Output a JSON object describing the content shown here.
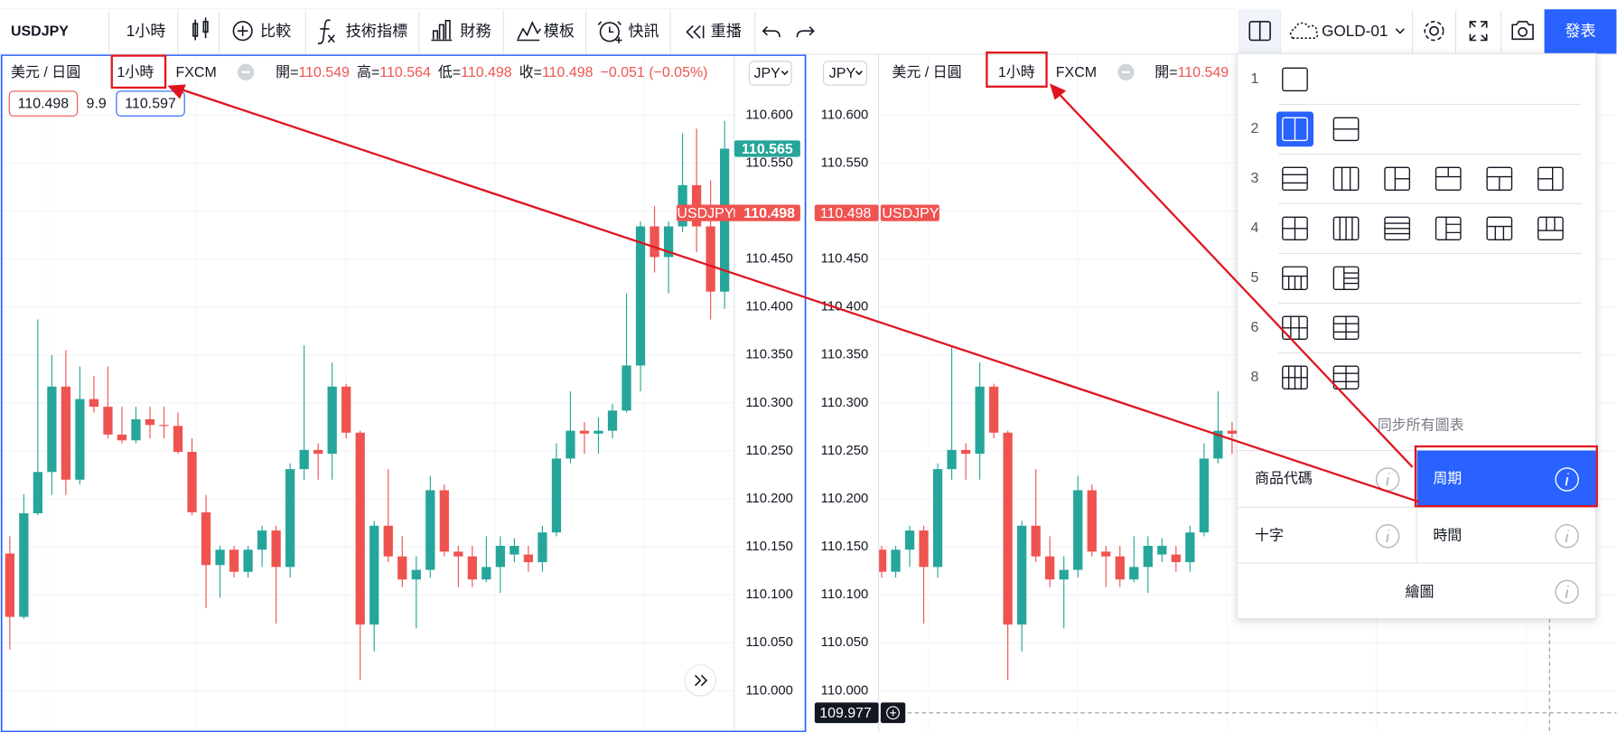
{
  "toolbar": {
    "symbol": "USDJPY",
    "interval": "1小時",
    "buttons": [
      "比較",
      "技術指標",
      "財務",
      "模板",
      "快訊",
      "重播"
    ],
    "layout_name": "GOLD-01",
    "publish": "發表"
  },
  "left_pane": {
    "quote": "美元 / 日圓",
    "interval": "1小時",
    "exchange": "FXCM",
    "ohlc": [
      {
        "label": "開=",
        "value": "110.549"
      },
      {
        "label": "高=",
        "value": "110.564"
      },
      {
        "label": "低=",
        "value": "110.498"
      },
      {
        "label": "收=",
        "value": "110.498"
      }
    ],
    "change": "−0.051 (−0.05%)",
    "bid": "110.498",
    "spread": "9.9",
    "ask": "110.597",
    "currency": "JPY",
    "last_price": 110.565,
    "symbol": "USDJPY",
    "symbol_price": 110.498
  },
  "right_pane": {
    "currency": "JPY",
    "quote": "美元 / 日圓",
    "interval": "1小時",
    "exchange": "FXCM",
    "open_label": "開=",
    "open": "110.549",
    "symbol_price": 110.498,
    "symbol": "USDJPY",
    "crosshair_price": 109.977
  },
  "layout_panel": {
    "rows": [
      "1",
      "2",
      "3",
      "4",
      "5",
      "6",
      "8"
    ],
    "sync_label": "同步所有圖表",
    "options": [
      "商品代碼",
      "周期",
      "十字",
      "時間",
      "繪圖"
    ]
  },
  "chart_data": {
    "type": "candlestick",
    "up_color": "#26a69a",
    "down_color": "#ef5350",
    "open": [
      110.143,
      110.077,
      110.185,
      110.228,
      110.317,
      110.22,
      110.304,
      110.296,
      110.267,
      110.261,
      110.283,
      110.277,
      110.276,
      110.249,
      110.186,
      110.131,
      110.147,
      110.124,
      110.147,
      110.167,
      110.129,
      110.231,
      110.251,
      110.247,
      110.317,
      110.269,
      110.069,
      110.172,
      110.14,
      110.116,
      110.126,
      110.209,
      110.145,
      110.14,
      110.116,
      110.129,
      110.142,
      110.142,
      110.134,
      110.165,
      110.242,
      110.271,
      110.268,
      110.271,
      110.292,
      110.339,
      110.484,
      110.452,
      110.484,
      110.527,
      110.484,
      110.416
    ],
    "high": [
      110.161,
      110.205,
      110.387,
      110.35,
      110.355,
      110.338,
      110.328,
      110.338,
      110.296,
      110.296,
      110.296,
      110.296,
      110.29,
      110.263,
      110.204,
      110.151,
      110.151,
      110.151,
      110.172,
      110.172,
      110.237,
      110.36,
      110.258,
      110.342,
      110.32,
      110.271,
      110.177,
      110.231,
      110.161,
      110.14,
      110.224,
      110.215,
      110.151,
      110.151,
      110.161,
      110.161,
      110.159,
      110.151,
      110.172,
      110.258,
      110.312,
      110.28,
      110.285,
      110.299,
      110.414,
      110.489,
      110.505,
      110.489,
      110.581,
      110.586,
      110.532,
      110.594
    ],
    "low": [
      110.043,
      110.075,
      110.183,
      110.204,
      110.204,
      110.215,
      110.29,
      110.263,
      110.258,
      110.258,
      110.263,
      110.263,
      110.247,
      110.183,
      110.086,
      110.097,
      110.118,
      110.118,
      110.129,
      110.07,
      110.118,
      110.22,
      110.22,
      110.22,
      110.263,
      110.011,
      110.041,
      110.134,
      110.108,
      110.065,
      110.118,
      110.14,
      110.108,
      110.108,
      110.113,
      110.102,
      110.134,
      110.124,
      110.124,
      110.161,
      110.237,
      110.247,
      110.247,
      110.263,
      110.29,
      110.312,
      110.436,
      110.414,
      110.478,
      110.457,
      110.387,
      110.398
    ],
    "close": [
      110.077,
      110.185,
      110.228,
      110.317,
      110.22,
      110.304,
      110.296,
      110.267,
      110.261,
      110.283,
      110.277,
      110.276,
      110.249,
      110.186,
      110.131,
      110.147,
      110.124,
      110.147,
      110.167,
      110.129,
      110.231,
      110.251,
      110.247,
      110.317,
      110.269,
      110.069,
      110.172,
      110.14,
      110.116,
      110.126,
      110.209,
      110.145,
      110.14,
      110.116,
      110.129,
      110.151,
      110.151,
      110.134,
      110.165,
      110.242,
      110.271,
      110.268,
      110.271,
      110.292,
      110.339,
      110.484,
      110.452,
      110.484,
      110.527,
      110.484,
      110.416,
      110.565
    ],
    "ylim": [
      109.957,
      110.663
    ],
    "yticks": [
      {
        "value": 110.0,
        "label": "110.000"
      },
      {
        "value": 110.05,
        "label": "110.050"
      },
      {
        "value": 110.1,
        "label": "110.100"
      },
      {
        "value": 110.15,
        "label": "110.150"
      },
      {
        "value": 110.2,
        "label": "110.200"
      },
      {
        "value": 110.25,
        "label": "110.250"
      },
      {
        "value": 110.3,
        "label": "110.300"
      },
      {
        "value": 110.35,
        "label": "110.350"
      },
      {
        "value": 110.4,
        "label": "110.400"
      },
      {
        "value": 110.45,
        "label": "110.450"
      },
      {
        "value": 110.5,
        "label": "110.500"
      },
      {
        "value": 110.55,
        "label": "110.550"
      },
      {
        "value": 110.6,
        "label": "110.600"
      }
    ]
  }
}
